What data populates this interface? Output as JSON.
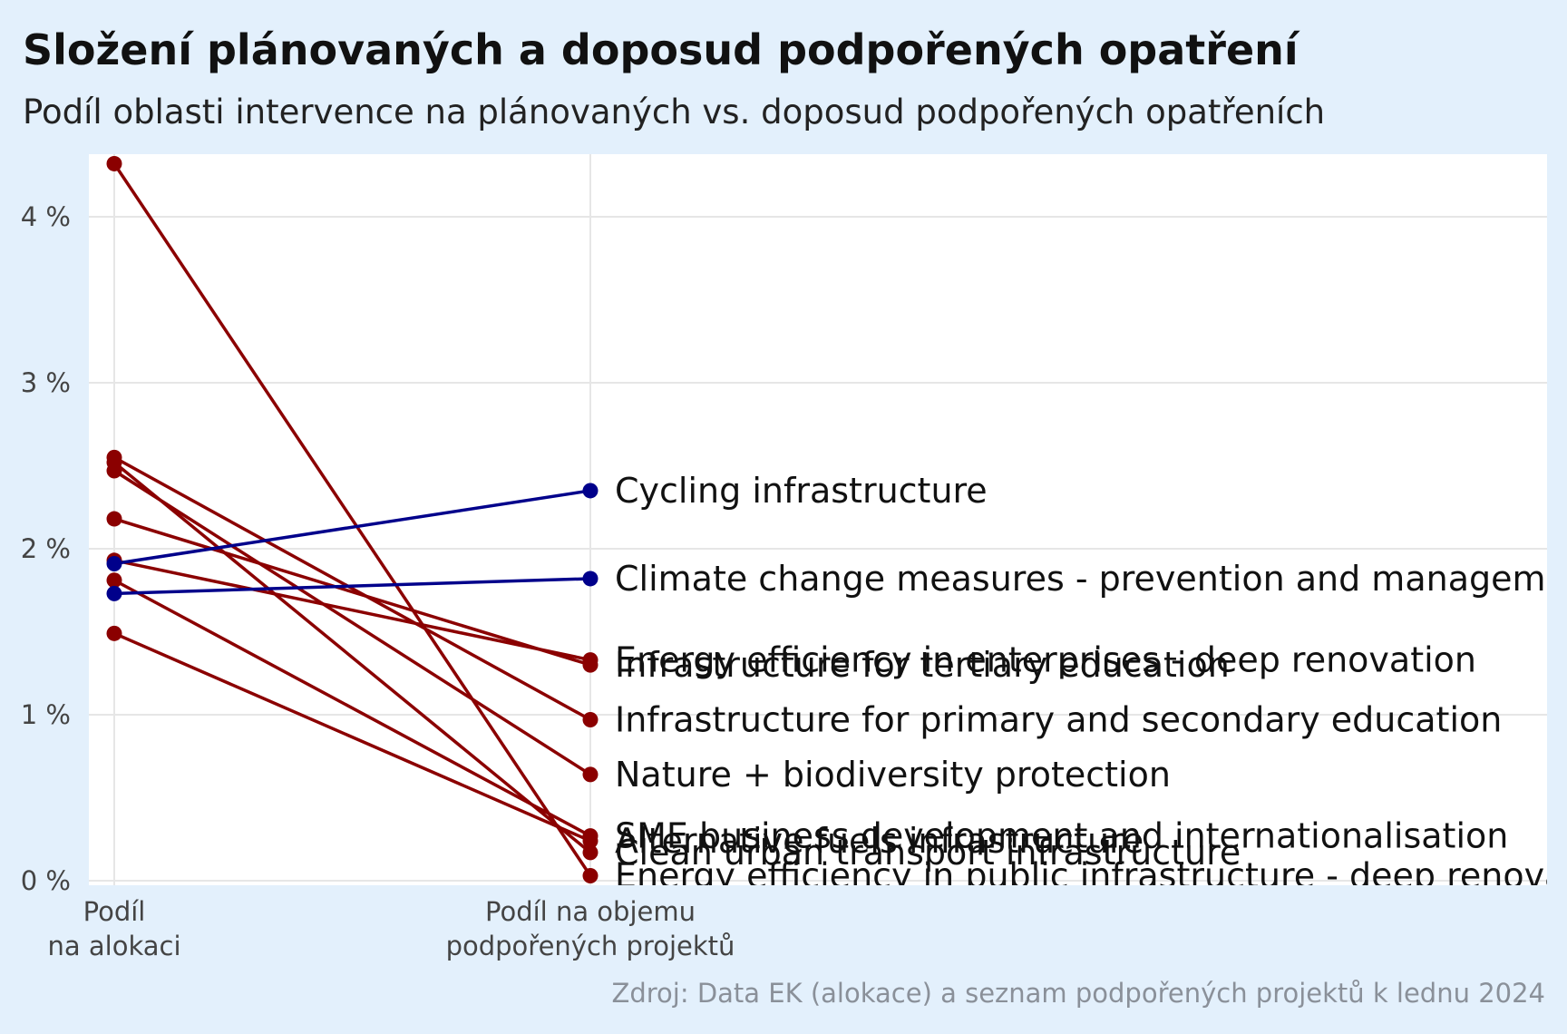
{
  "title": "Složení plánovaných a doposud podpořených opatření",
  "subtitle": "Podíl oblasti intervence na plánovaných vs. doposud podpořených opatřeních",
  "source": "Zdroj: Data EK (alokace) a seznam podpořených projektů k lednu 2024",
  "colors": {
    "increase": "#00008b",
    "decrease": "#8b0000",
    "background": "#e3f0fc",
    "panel": "#ffffff",
    "grid": "#e6e6e6"
  },
  "chart_data": {
    "type": "line",
    "subtype": "slope",
    "x": [
      "Podíl na alokaci",
      "Podíl na objemu podpořených projektů"
    ],
    "x_tick_labels": [
      [
        "Podíl",
        "na alokaci"
      ],
      [
        "Podíl na objemu",
        "podpořených projektů"
      ]
    ],
    "y_tick_labels": [
      "0 %",
      "1 %",
      "2 %",
      "3 %",
      "4 %"
    ],
    "y_ticks": [
      0,
      1,
      2,
      3,
      4
    ],
    "ylim": [
      0,
      4.4
    ],
    "grid": true,
    "legend": "none",
    "series": [
      {
        "name": "Cycling infrastructure",
        "values": [
          1.91,
          2.35
        ],
        "direction": "increase"
      },
      {
        "name": "Climate change measures - prevention and management",
        "values": [
          1.73,
          1.82
        ],
        "direction": "increase"
      },
      {
        "name": "Energy efficiency in enterprises - deep renovation",
        "values": [
          1.93,
          1.33
        ],
        "direction": "decrease"
      },
      {
        "name": "Infrastructure for tertiary education",
        "values": [
          2.18,
          1.3
        ],
        "direction": "decrease"
      },
      {
        "name": "Infrastructure for primary and secondary education",
        "values": [
          2.55,
          0.97
        ],
        "direction": "decrease"
      },
      {
        "name": "Nature + biodiversity protection",
        "values": [
          2.47,
          0.64
        ],
        "direction": "decrease"
      },
      {
        "name": "SME business development and internationalisation",
        "values": [
          1.81,
          0.27
        ],
        "direction": "decrease"
      },
      {
        "name": "Alternative fuels infrastructure",
        "values": [
          1.49,
          0.24
        ],
        "direction": "decrease"
      },
      {
        "name": "Clean urban transport infrastructure",
        "values": [
          2.52,
          0.17
        ],
        "direction": "decrease"
      },
      {
        "name": "Energy efficiency in public infrastructure - deep renovation",
        "values": [
          4.32,
          0.03
        ],
        "direction": "decrease"
      }
    ]
  }
}
